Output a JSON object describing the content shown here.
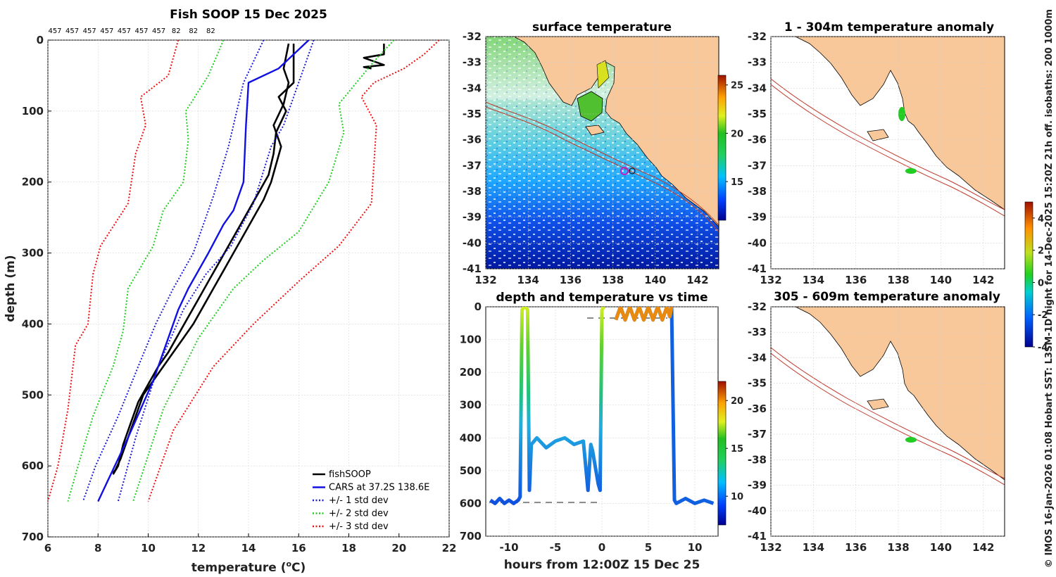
{
  "chart_data": [
    {
      "type": "line",
      "title": "Fish SOOP 15 Dec 2025",
      "xlabel": "temperature (°C)",
      "ylabel": "depth (m)",
      "xlim": [
        6,
        22
      ],
      "ylim": [
        0,
        700
      ],
      "y_reversed": true,
      "xticks": [
        "6",
        "8",
        "10",
        "12",
        "14",
        "16",
        "18",
        "20",
        "22"
      ],
      "yticks": [
        "0",
        "100",
        "200",
        "300",
        "400",
        "500",
        "600",
        "700"
      ],
      "top_labels": [
        "457",
        "457",
        "457",
        "457",
        "457",
        "457",
        "457",
        "82",
        "82",
        "82"
      ],
      "legend_position": "bottom-right",
      "series": [
        {
          "name": "fishSOOP",
          "color": "#000000",
          "style": "solid",
          "x": [
            15.6,
            15.4,
            15.6,
            15.4,
            15.0,
            15.3,
            15.1,
            14.9,
            14.6,
            14.2,
            13.8,
            13.4,
            13.0,
            12.6,
            12.2,
            11.8,
            11.4,
            11.0,
            10.6,
            10.2,
            9.8,
            9.5,
            9.2,
            8.9,
            8.7,
            8.6
          ],
          "y": [
            5,
            40,
            60,
            90,
            120,
            150,
            175,
            200,
            225,
            250,
            275,
            300,
            325,
            350,
            375,
            400,
            420,
            440,
            460,
            480,
            500,
            530,
            560,
            590,
            605,
            610
          ]
        },
        {
          "name": "fishSOOP",
          "color": "#000000",
          "style": "solid",
          "x": [
            15.8,
            15.8,
            15.2,
            15.5,
            15.1,
            15.0,
            14.8,
            14.4,
            14.0,
            13.6,
            13.2,
            12.8,
            12.4,
            12.0,
            11.6,
            11.2,
            10.8,
            10.4,
            10.0,
            9.6,
            9.3,
            9.0,
            8.8,
            8.6
          ],
          "y": [
            5,
            60,
            80,
            100,
            130,
            160,
            190,
            215,
            240,
            265,
            290,
            315,
            340,
            365,
            390,
            415,
            440,
            460,
            485,
            510,
            540,
            570,
            600,
            612
          ]
        },
        {
          "name": "fishSOOP",
          "color": "#000000",
          "style": "solid",
          "x": [
            19.4,
            19.4,
            18.6,
            19.4,
            18.6,
            18.9
          ],
          "y": [
            5,
            20,
            25,
            35,
            38,
            40
          ]
        },
        {
          "name": "CARS at 37.2S 138.6E",
          "color": "#1010e0",
          "style": "solid",
          "x": [
            16.4,
            15.2,
            14.0,
            13.9,
            13.8,
            13.4,
            13.0,
            12.4,
            11.6,
            11.2,
            10.7,
            10.2,
            9.7,
            9.2,
            8.8,
            8.4,
            8.0
          ],
          "y": [
            0,
            40,
            60,
            120,
            200,
            240,
            260,
            300,
            350,
            380,
            430,
            480,
            520,
            560,
            590,
            620,
            650
          ]
        },
        {
          "name": "+/- 1 std dev",
          "color": "#1a1ad8",
          "style": "dotted",
          "x": [
            14.6,
            13.8,
            13.2,
            12.6,
            11.8,
            11.0,
            10.3,
            9.6,
            8.8,
            7.9,
            7.4
          ],
          "y": [
            0,
            60,
            150,
            220,
            300,
            350,
            400,
            460,
            530,
            600,
            650
          ]
        },
        {
          "name": "+/- 1 std dev",
          "color": "#1a1ad8",
          "style": "dotted",
          "x": [
            16.6,
            16.2,
            15.8,
            15.4,
            14.9,
            14.2,
            13.3,
            12.3,
            11.4,
            10.4,
            9.5,
            8.8
          ],
          "y": [
            0,
            40,
            80,
            120,
            150,
            230,
            290,
            330,
            380,
            460,
            560,
            650
          ]
        },
        {
          "name": "+/- 2 std dev",
          "color": "#22cc22",
          "style": "dotted",
          "x": [
            13.0,
            12.4,
            11.5,
            11.6,
            11.4,
            10.6,
            10.2,
            9.2,
            9.0,
            8.6,
            7.8,
            7.2,
            6.8
          ],
          "y": [
            0,
            50,
            100,
            140,
            200,
            240,
            290,
            350,
            410,
            460,
            530,
            600,
            650
          ]
        },
        {
          "name": "+/- 2 std dev",
          "color": "#22cc22",
          "style": "dotted",
          "x": [
            19.8,
            19.0,
            18.3,
            17.6,
            17.8,
            17.2,
            16.0,
            14.6,
            13.4,
            12.0,
            10.6,
            9.4
          ],
          "y": [
            0,
            30,
            60,
            90,
            130,
            200,
            270,
            310,
            350,
            420,
            520,
            650
          ]
        },
        {
          "name": "+/- 3 std dev",
          "color": "#ee1111",
          "style": "dotted",
          "x": [
            11.2,
            10.8,
            9.7,
            9.9,
            9.5,
            9.2,
            8.1,
            7.8,
            7.6,
            7.1,
            6.8,
            6.4,
            6.0
          ],
          "y": [
            0,
            50,
            80,
            120,
            160,
            230,
            290,
            330,
            400,
            430,
            520,
            600,
            650
          ]
        },
        {
          "name": "+/- 3 std dev",
          "color": "#ee1111",
          "style": "dotted",
          "x": [
            21.6,
            21.0,
            20.2,
            19.0,
            18.5,
            19.1,
            18.9,
            17.6,
            16.0,
            14.2,
            12.6,
            11.0,
            10.0
          ],
          "y": [
            0,
            20,
            40,
            60,
            80,
            120,
            230,
            290,
            340,
            400,
            460,
            550,
            650
          ]
        }
      ]
    },
    {
      "type": "heatmap",
      "title": "surface temperature",
      "xlim": [
        132,
        143
      ],
      "ylim": [
        -41,
        -32
      ],
      "xticks": [
        "132",
        "134",
        "136",
        "138",
        "140",
        "142"
      ],
      "yticks": [
        "-32",
        "-33",
        "-34",
        "-35",
        "-36",
        "-37",
        "-38",
        "-39",
        "-40",
        "-41"
      ],
      "colorbar": {
        "range": [
          11,
          26
        ],
        "ticks": [
          "25",
          "20",
          "15"
        ]
      },
      "description_value": "SST field over South Australian coast, warm (yellow-green) in gulfs, cooling to blue southward"
    },
    {
      "type": "scatter",
      "title": "depth and temperature vs time",
      "xlabel": "hours from 12:00Z 15 Dec 25",
      "xlim": [
        -12.5,
        12.5
      ],
      "ylim": [
        0,
        700
      ],
      "y_reversed": true,
      "xticks": [
        "-10",
        "-5",
        "0",
        "5",
        "10"
      ],
      "yticks": [
        "0",
        "100",
        "200",
        "300",
        "400",
        "500",
        "600",
        "700"
      ],
      "colorbar": {
        "range": [
          7,
          22
        ],
        "ticks": [
          "20",
          "15",
          "10"
        ]
      },
      "series": [
        {
          "name": "depth track",
          "x": [
            -12,
            -11.5,
            -11,
            -10.5,
            -10,
            -9.5,
            -9,
            -8.8,
            -8.6,
            -8.4,
            -8.2,
            -8,
            -7.8,
            -7.6,
            -7,
            -6,
            -5,
            -4,
            -3,
            -2,
            -1.5,
            -1.2,
            -1,
            -0.4,
            -0.2,
            0,
            0.2
          ],
          "y": [
            590,
            600,
            585,
            600,
            590,
            600,
            590,
            580,
            10,
            0,
            0,
            10,
            560,
            420,
            400,
            430,
            410,
            400,
            420,
            410,
            560,
            420,
            440,
            540,
            560,
            10,
            0
          ]
        },
        {
          "name": "depth track",
          "x": [
            1.5,
            2,
            2.5,
            3,
            3.5,
            4,
            4.5,
            5,
            5.5,
            6,
            6.5,
            7,
            7.3,
            7.5,
            7.8,
            8,
            9,
            10,
            11,
            12
          ],
          "y": [
            40,
            0,
            40,
            0,
            40,
            0,
            40,
            0,
            40,
            0,
            40,
            0,
            30,
            0,
            590,
            600,
            585,
            600,
            590,
            600
          ]
        }
      ]
    },
    {
      "type": "heatmap",
      "title": "1 - 304m temperature anomaly",
      "xlim": [
        132,
        143
      ],
      "ylim": [
        -41,
        -32
      ],
      "xticks": [
        "132",
        "134",
        "136",
        "138",
        "140",
        "142"
      ],
      "yticks": [
        "-32",
        "-33",
        "-34",
        "-35",
        "-36",
        "-37",
        "-38",
        "-39",
        "-40",
        "-41"
      ]
    },
    {
      "type": "heatmap",
      "title": "305 - 609m temperature anomaly",
      "xlim": [
        132,
        143
      ],
      "ylim": [
        -41,
        -32
      ],
      "xticks": [
        "132",
        "134",
        "136",
        "138",
        "140",
        "142"
      ],
      "yticks": [
        "-32",
        "-33",
        "-34",
        "-35",
        "-36",
        "-37",
        "-38",
        "-39",
        "-40",
        "-41"
      ],
      "colorbar": {
        "range": [
          -4,
          5
        ],
        "ticks": [
          "4",
          "2",
          "0",
          "-2",
          "-4"
        ]
      }
    }
  ],
  "side_caption": "© IMOS 16-Jan-2026 01:08 Hobart SST: L3SM-1D night for 14-Dec-2025 15:20Z 21h off. isobaths: 200  1000m",
  "colors": {
    "land": "#f8c89a",
    "coast": "#000000",
    "isobath": "#c0392b"
  }
}
